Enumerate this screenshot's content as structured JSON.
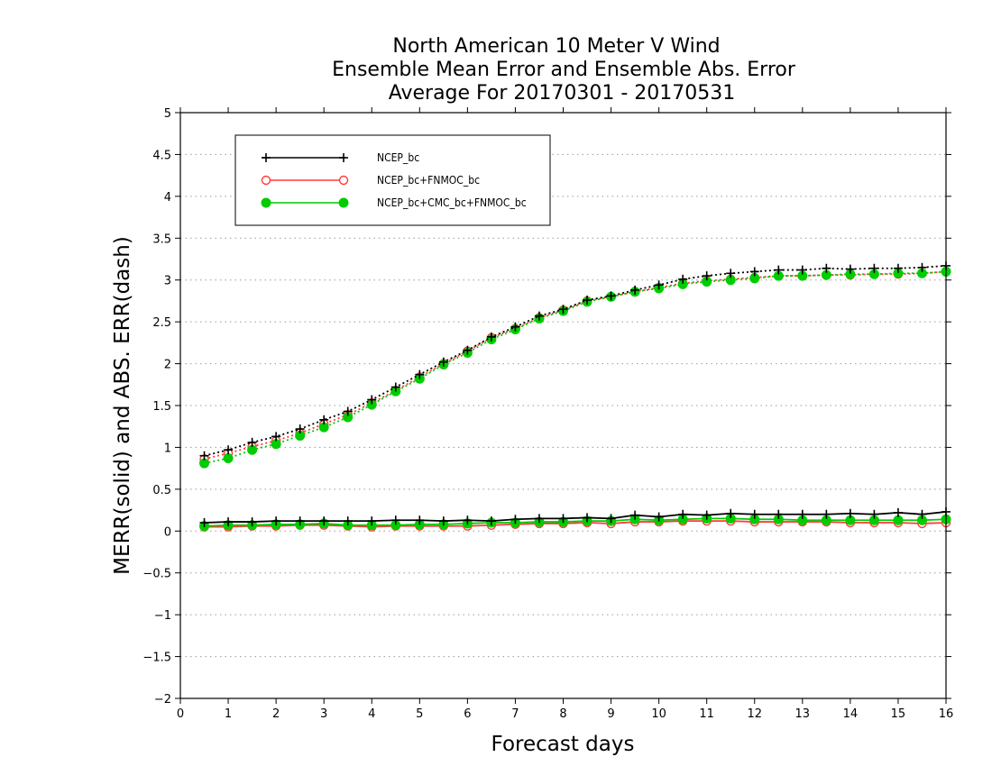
{
  "chart_data": {
    "type": "line",
    "title": [
      "North American 10 Meter V Wind",
      "Ensemble Mean Error and Ensemble Abs. Error",
      "Average For 20170301 - 20170531"
    ],
    "xlabel": "Forecast days",
    "ylabel": "MERR(solid) and ABS. ERR(dash)",
    "xlim": [
      0,
      16
    ],
    "ylim": [
      -2,
      5
    ],
    "xticks": [
      0,
      1,
      2,
      3,
      4,
      5,
      6,
      7,
      8,
      9,
      10,
      11,
      12,
      13,
      14,
      15,
      16
    ],
    "xtick_labels": [
      "0",
      "1",
      "2",
      "3",
      "4",
      "5",
      "6",
      "7",
      "8",
      "9",
      "10",
      "11",
      "12",
      "13",
      "14",
      "15",
      "16"
    ],
    "yticks": [
      -2,
      -1.5,
      -1,
      -0.5,
      0,
      0.5,
      1,
      1.5,
      2,
      2.5,
      3,
      3.5,
      4,
      4.5,
      5
    ],
    "ytick_labels": [
      "−2",
      "−1.5",
      "−1",
      "−0.5",
      "0",
      "0.5",
      "1",
      "1.5",
      "2",
      "2.5",
      "3",
      "3.5",
      "4",
      "4.5",
      "5"
    ],
    "grid": true,
    "legend_position": "top-left",
    "x": [
      0.5,
      1,
      1.5,
      2,
      2.5,
      3,
      3.5,
      4,
      4.5,
      5,
      5.5,
      6,
      6.5,
      7,
      7.5,
      8,
      8.5,
      9,
      9.5,
      10,
      10.5,
      11,
      11.5,
      12,
      12.5,
      13,
      13.5,
      14,
      14.5,
      15,
      15.5,
      16
    ],
    "series": [
      {
        "name": "NCEP_bc",
        "color": "#000000",
        "marker": "plus",
        "merr": [
          0.1,
          0.11,
          0.11,
          0.12,
          0.12,
          0.12,
          0.12,
          0.12,
          0.13,
          0.13,
          0.12,
          0.13,
          0.12,
          0.14,
          0.15,
          0.15,
          0.16,
          0.15,
          0.19,
          0.17,
          0.2,
          0.19,
          0.21,
          0.2,
          0.2,
          0.2,
          0.2,
          0.21,
          0.2,
          0.22,
          0.2,
          0.23
        ],
        "abs_err": [
          0.9,
          0.97,
          1.06,
          1.13,
          1.22,
          1.33,
          1.43,
          1.57,
          1.72,
          1.87,
          2.02,
          2.16,
          2.32,
          2.44,
          2.57,
          2.65,
          2.76,
          2.81,
          2.88,
          2.94,
          3.01,
          3.05,
          3.08,
          3.1,
          3.12,
          3.12,
          3.14,
          3.13,
          3.14,
          3.14,
          3.15,
          3.17
        ]
      },
      {
        "name": "NCEP_bc+FNMOC_bc",
        "color": "#ff3b3b",
        "marker": "open-circle",
        "merr": [
          0.05,
          0.05,
          0.06,
          0.06,
          0.07,
          0.07,
          0.06,
          0.05,
          0.06,
          0.06,
          0.06,
          0.06,
          0.07,
          0.08,
          0.09,
          0.09,
          0.1,
          0.09,
          0.11,
          0.11,
          0.12,
          0.12,
          0.12,
          0.11,
          0.11,
          0.11,
          0.11,
          0.1,
          0.1,
          0.1,
          0.09,
          0.1
        ],
        "abs_err": [
          0.86,
          0.93,
          1.01,
          1.08,
          1.17,
          1.28,
          1.39,
          1.53,
          1.68,
          1.84,
          2.0,
          2.15,
          2.31,
          2.42,
          2.55,
          2.64,
          2.75,
          2.8,
          2.86,
          2.91,
          2.96,
          2.99,
          3.01,
          3.03,
          3.05,
          3.05,
          3.06,
          3.06,
          3.07,
          3.07,
          3.08,
          3.1
        ]
      },
      {
        "name": "NCEP_bc+CMC_bc+FNMOC_bc",
        "color": "#00cc00",
        "marker": "filled-circle",
        "merr": [
          0.06,
          0.07,
          0.07,
          0.08,
          0.08,
          0.09,
          0.07,
          0.07,
          0.07,
          0.08,
          0.08,
          0.09,
          0.1,
          0.1,
          0.11,
          0.11,
          0.12,
          0.12,
          0.14,
          0.13,
          0.14,
          0.15,
          0.15,
          0.14,
          0.14,
          0.13,
          0.13,
          0.13,
          0.13,
          0.13,
          0.13,
          0.14
        ],
        "abs_err": [
          0.81,
          0.87,
          0.97,
          1.04,
          1.14,
          1.24,
          1.36,
          1.51,
          1.67,
          1.82,
          1.99,
          2.13,
          2.29,
          2.41,
          2.54,
          2.63,
          2.74,
          2.8,
          2.86,
          2.9,
          2.95,
          2.98,
          3.0,
          3.02,
          3.05,
          3.05,
          3.06,
          3.07,
          3.07,
          3.08,
          3.08,
          3.1
        ]
      }
    ]
  }
}
